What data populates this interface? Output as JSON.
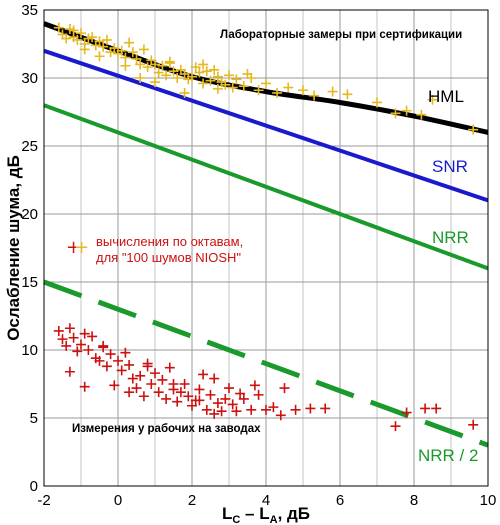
{
  "chart_data": {
    "type": "scatter",
    "title": "",
    "xlabel_main": "L",
    "xlabel_sub_c": "C",
    "xlabel_minus": " – L",
    "xlabel_sub_a": "A",
    "xlabel_unit": ", дБ",
    "ylabel": "Ослабление шума, дБ",
    "xlim": [
      -2,
      10
    ],
    "ylim": [
      0,
      35
    ],
    "x_ticks": [
      "-2",
      "0",
      "2",
      "4",
      "6",
      "8",
      "10"
    ],
    "y_ticks": [
      "0",
      "5",
      "10",
      "15",
      "20",
      "25",
      "30",
      "35"
    ],
    "x_tick_values": [
      -2,
      0,
      2,
      4,
      6,
      8,
      10
    ],
    "y_tick_values": [
      0,
      5,
      10,
      15,
      20,
      25,
      30,
      35
    ],
    "grid": true,
    "colors": {
      "hml": "#000000",
      "snr": "#1a1acc",
      "nrr": "#1a9a2a",
      "lab_points": "#e6b820",
      "field_points": "#cc1111"
    },
    "annotations": {
      "lab": "Лабораторные замеры при сертификации",
      "field": "Измерения у рабочих на заводах",
      "legend_line1": "вычисления по октавам,",
      "legend_line2": "для \"100 шумов NIOSH\""
    },
    "series": [
      {
        "name": "HML",
        "type": "line",
        "x": [
          -2,
          0,
          2,
          4,
          6,
          8,
          10
        ],
        "y": [
          34,
          32,
          30.1,
          29,
          28.2,
          27.2,
          26
        ]
      },
      {
        "name": "SNR",
        "type": "line",
        "x": [
          -2,
          10
        ],
        "y": [
          32,
          21
        ]
      },
      {
        "name": "NRR",
        "type": "line",
        "x": [
          -2,
          10
        ],
        "y": [
          28,
          16
        ]
      },
      {
        "name": "NRR / 2",
        "type": "line",
        "dashed": true,
        "x": [
          -2,
          10
        ],
        "y": [
          15,
          3
        ]
      },
      {
        "name": "",
        "type": "scatter",
        "color_key": "lab_points",
        "x": [
          -1.6,
          -1.5,
          -1.4,
          -1.3,
          -1.2,
          -1.1,
          -1.0,
          -0.9,
          -0.8,
          -0.7,
          -0.6,
          -0.5,
          -0.4,
          -0.3,
          -0.2,
          -0.1,
          0.0,
          0.1,
          0.2,
          0.3,
          0.4,
          0.5,
          0.6,
          0.7,
          0.8,
          0.9,
          1.0,
          1.1,
          1.2,
          1.3,
          1.4,
          1.5,
          1.6,
          1.7,
          1.8,
          1.9,
          2.0,
          2.1,
          2.2,
          2.3,
          2.4,
          2.5,
          2.6,
          2.7,
          2.8,
          2.9,
          3.0,
          3.1,
          3.2,
          3.4,
          3.6,
          3.8,
          4.0,
          4.3,
          4.6,
          5.0,
          5.3,
          5.8,
          6.2,
          7.0,
          7.5,
          7.8,
          8.2,
          8.5,
          9.6,
          -1.2,
          -0.9,
          -0.5,
          0.2,
          0.6,
          1.0,
          1.4,
          1.8,
          2.3,
          2.7,
          3.5
        ],
        "y": [
          33.7,
          33.2,
          32.9,
          33.6,
          33.0,
          32.8,
          33.3,
          32.5,
          32.9,
          33.0,
          32.4,
          32.7,
          32.3,
          32.8,
          31.9,
          32.2,
          31.8,
          32.0,
          31.5,
          32.6,
          31.9,
          31.4,
          31.0,
          32.1,
          30.8,
          31.3,
          31.0,
          30.4,
          30.9,
          30.2,
          31.1,
          30.5,
          30.0,
          30.6,
          30.3,
          29.9,
          30.1,
          30.8,
          30.4,
          29.6,
          30.5,
          29.8,
          30.6,
          30.1,
          29.7,
          29.5,
          30.2,
          29.3,
          29.9,
          29.4,
          30.0,
          29.1,
          29.6,
          28.9,
          29.3,
          29.1,
          28.7,
          29.0,
          28.8,
          28.2,
          27.4,
          27.6,
          27.3,
          28.4,
          26.2,
          33.5,
          32.1,
          31.6,
          30.9,
          30.0,
          29.7,
          31.2,
          28.9,
          31.0,
          29.2,
          30.3
        ]
      },
      {
        "name": "",
        "type": "scatter",
        "color_key": "field_points",
        "x": [
          -1.6,
          -1.5,
          -1.4,
          -1.3,
          -1.2,
          -1.1,
          -1.0,
          -0.9,
          -0.8,
          -0.7,
          -0.6,
          -0.5,
          -0.4,
          -0.3,
          -0.2,
          -0.1,
          0.0,
          0.1,
          0.2,
          0.3,
          0.4,
          0.5,
          0.6,
          0.7,
          0.8,
          0.9,
          1.0,
          1.1,
          1.2,
          1.3,
          1.4,
          1.5,
          1.6,
          1.7,
          1.8,
          1.9,
          2.0,
          2.1,
          2.2,
          2.3,
          2.4,
          2.5,
          2.6,
          2.7,
          2.8,
          2.9,
          3.0,
          3.1,
          3.2,
          3.4,
          3.6,
          3.8,
          4.0,
          4.2,
          4.5,
          4.8,
          5.2,
          5.6,
          7.5,
          7.8,
          8.3,
          8.6,
          9.6,
          -1.3,
          -0.9,
          -0.4,
          0.3,
          0.8,
          1.5,
          2.2,
          2.6,
          3.3,
          3.7,
          4.4
        ],
        "y": [
          11.4,
          10.8,
          10.3,
          11.6,
          10.9,
          9.9,
          10.4,
          11.2,
          10.0,
          11.0,
          9.4,
          9.2,
          10.3,
          8.8,
          9.7,
          7.4,
          9.2,
          8.5,
          9.8,
          8.9,
          7.9,
          7.2,
          8.1,
          6.6,
          9.0,
          7.5,
          8.3,
          6.9,
          7.8,
          6.4,
          8.7,
          7.1,
          6.2,
          6.9,
          7.5,
          6.6,
          5.9,
          6.3,
          7.1,
          8.2,
          5.6,
          6.7,
          7.9,
          6.1,
          5.5,
          6.4,
          7.2,
          6.0,
          5.5,
          6.4,
          5.6,
          6.7,
          5.6,
          5.8,
          7.2,
          5.6,
          5.7,
          5.7,
          4.4,
          5.4,
          5.7,
          5.7,
          4.5,
          8.4,
          7.3,
          10.2,
          6.9,
          8.8,
          7.5,
          6.3,
          5.3,
          6.8,
          7.4,
          5.2
        ]
      }
    ]
  }
}
